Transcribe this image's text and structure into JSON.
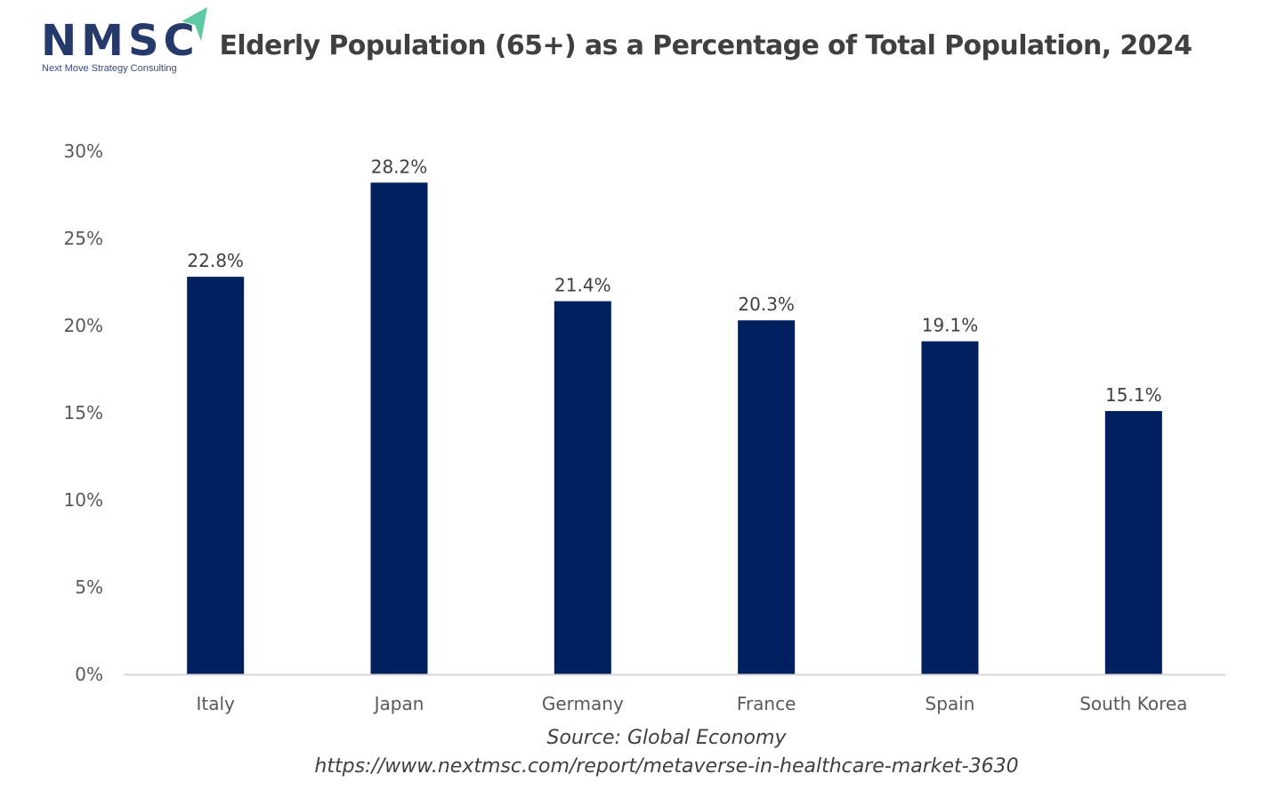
{
  "logo": {
    "letters": "NMSC",
    "tagline": "Next Move Strategy Consulting",
    "colors": {
      "text": "#26396b",
      "arrow": "#5ec9a3"
    }
  },
  "chart_data": {
    "type": "bar",
    "title": "Elderly Population (65+) as a Percentage of Total Population, 2024",
    "categories": [
      "Italy",
      "Japan",
      "Germany",
      "France",
      "Spain",
      "South Korea"
    ],
    "values": [
      22.8,
      28.2,
      21.4,
      20.3,
      19.1,
      15.1
    ],
    "data_labels": [
      "22.8%",
      "28.2%",
      "21.4%",
      "20.3%",
      "19.1%",
      "15.1%"
    ],
    "xlabel": "",
    "ylabel": "",
    "ylim": [
      0,
      30
    ],
    "yticks": [
      0,
      5,
      10,
      15,
      20,
      25,
      30
    ],
    "ytick_labels": [
      "0%",
      "5%",
      "10%",
      "15%",
      "20%",
      "25%",
      "30%"
    ],
    "grid": false,
    "legend": "none",
    "bar_color": "#002060",
    "axis_color": "#d9d9d9"
  },
  "footer": {
    "source": "Source: Global Economy",
    "url": "https://www.nextmsc.com/report/metaverse-in-healthcare-market-3630"
  }
}
